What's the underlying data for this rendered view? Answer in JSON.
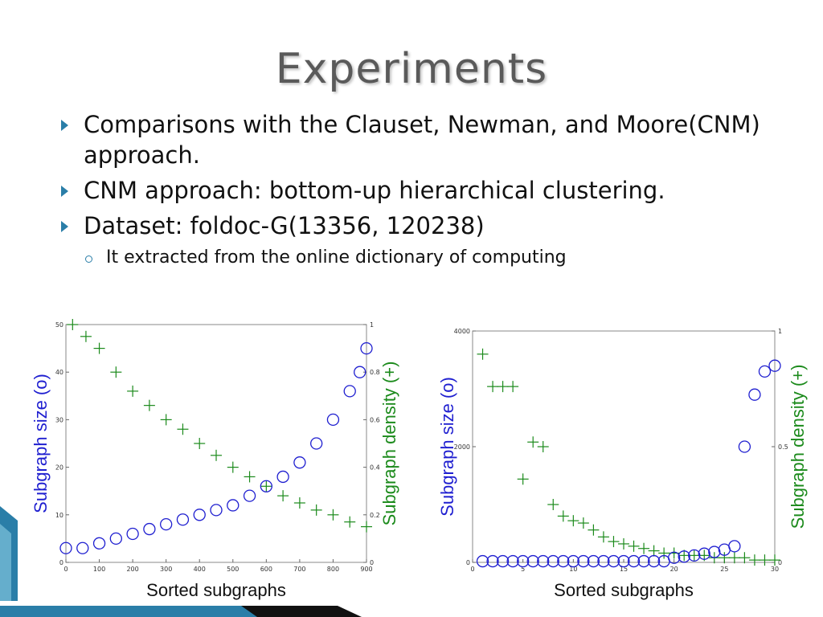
{
  "slide": {
    "title": "Experiments",
    "bullets": [
      {
        "text": "Comparisons with the Clauset, Newman, and Moore(CNM) approach."
      },
      {
        "text": "CNM approach: bottom-up hierarchical clustering."
      },
      {
        "text": "Dataset: foldoc-G(13356, 120238)"
      }
    ],
    "sub_bullets": [
      {
        "text": "It extracted from the online dictionary of computing"
      }
    ]
  },
  "colors": {
    "size_series": "#1f1fd0",
    "density_series": "#1b8a1b",
    "accent": "#2a7ea8",
    "title": "#5a5a5a"
  },
  "chart_data": [
    {
      "type": "scatter",
      "xlabel": "Sorted subgraphs",
      "ylabel_left": "Subgraph size (o)",
      "ylabel_right": "Subgraph density (+)",
      "xlim": [
        0,
        900
      ],
      "ylim_left": [
        0,
        50
      ],
      "ylim_right": [
        0,
        1
      ],
      "xticks": [
        "0",
        "100",
        "200",
        "300",
        "400",
        "500",
        "600",
        "700",
        "800",
        "900"
      ],
      "yticks_left": [
        "0",
        "10",
        "20",
        "30",
        "40",
        "50"
      ],
      "yticks_right": [
        "0",
        "0.2",
        "0.4",
        "0.6",
        "0.8",
        "1"
      ],
      "grid": false,
      "series": [
        {
          "name": "Subgraph size (o)",
          "marker": "o",
          "axis": "left",
          "x": [
            0,
            50,
            100,
            150,
            200,
            250,
            300,
            350,
            400,
            450,
            500,
            550,
            600,
            650,
            700,
            750,
            800,
            850,
            880,
            900
          ],
          "y": [
            3,
            3,
            4,
            5,
            6,
            7,
            8,
            9,
            10,
            11,
            12,
            14,
            16,
            18,
            21,
            25,
            30,
            36,
            40,
            45
          ]
        },
        {
          "name": "Subgraph density (+)",
          "marker": "+",
          "axis": "right",
          "x": [
            20,
            60,
            100,
            150,
            200,
            250,
            300,
            350,
            400,
            450,
            500,
            550,
            600,
            650,
            700,
            750,
            800,
            850,
            900
          ],
          "y": [
            1.0,
            0.95,
            0.9,
            0.8,
            0.72,
            0.66,
            0.6,
            0.56,
            0.5,
            0.45,
            0.4,
            0.36,
            0.32,
            0.28,
            0.25,
            0.22,
            0.2,
            0.17,
            0.15
          ]
        }
      ]
    },
    {
      "type": "scatter",
      "xlabel": "Sorted subgraphs",
      "ylabel_left": "Subgraph size (o)",
      "ylabel_right": "Subgraph density (+)",
      "xlim": [
        0,
        30
      ],
      "ylim_left": [
        0,
        4000
      ],
      "ylim_right": [
        0,
        1
      ],
      "xticks": [
        "0",
        "5",
        "10",
        "15",
        "20",
        "25",
        "30"
      ],
      "yticks_left": [
        "0",
        "2000",
        "4000"
      ],
      "yticks_right": [
        "0",
        "0.5",
        "1"
      ],
      "grid": false,
      "series": [
        {
          "name": "Subgraph size (o)",
          "marker": "o",
          "axis": "left",
          "x": [
            1,
            2,
            3,
            4,
            5,
            6,
            7,
            8,
            9,
            10,
            11,
            12,
            13,
            14,
            15,
            16,
            17,
            18,
            19,
            20,
            21,
            22,
            23,
            24,
            25,
            26,
            27,
            28,
            29,
            30
          ],
          "y": [
            20,
            20,
            20,
            20,
            20,
            20,
            20,
            20,
            20,
            20,
            20,
            20,
            20,
            20,
            20,
            20,
            20,
            20,
            20,
            80,
            100,
            120,
            150,
            180,
            220,
            280,
            2000,
            2900,
            3300,
            3400
          ]
        },
        {
          "name": "Subgraph density (+)",
          "marker": "+",
          "axis": "right",
          "x": [
            1,
            2,
            3,
            4,
            5,
            6,
            7,
            8,
            9,
            10,
            11,
            12,
            13,
            14,
            15,
            16,
            17,
            18,
            19,
            20,
            21,
            22,
            23,
            24,
            25,
            26,
            27,
            28,
            29,
            30
          ],
          "y": [
            0.9,
            0.76,
            0.76,
            0.76,
            0.36,
            0.52,
            0.5,
            0.25,
            0.2,
            0.18,
            0.17,
            0.14,
            0.11,
            0.09,
            0.08,
            0.07,
            0.06,
            0.05,
            0.04,
            0.04,
            0.03,
            0.03,
            0.03,
            0.02,
            0.02,
            0.02,
            0.02,
            0.01,
            0.01,
            0.01
          ]
        }
      ]
    }
  ]
}
